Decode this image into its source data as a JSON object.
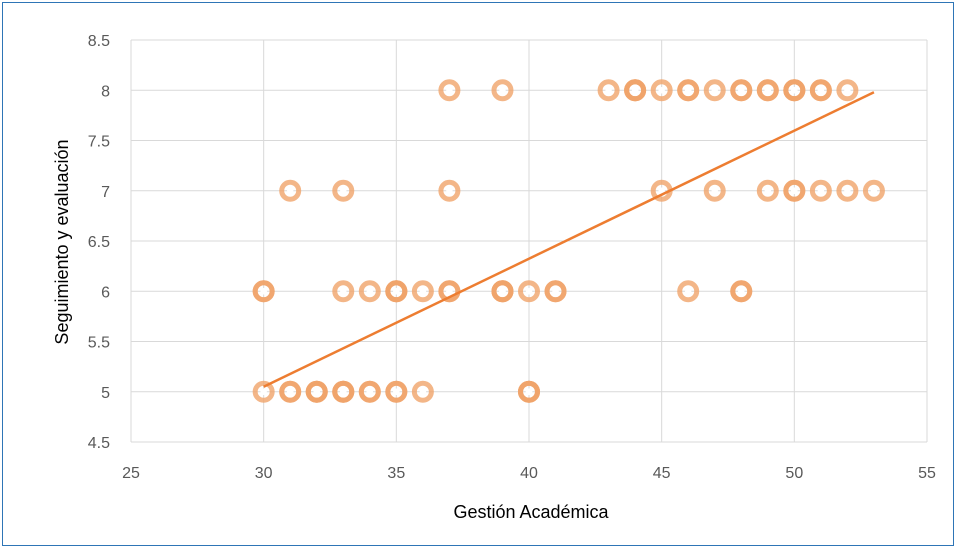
{
  "chart_data": {
    "type": "scatter",
    "title": "",
    "xlabel": "Gestión Académica",
    "ylabel": "Seguimiento y evaluación",
    "xlim": [
      25,
      55
    ],
    "ylim": [
      4.5,
      8.5
    ],
    "x_ticks": [
      25,
      30,
      35,
      40,
      45,
      50,
      55
    ],
    "y_ticks": [
      4.5,
      5,
      5.5,
      6,
      6.5,
      7,
      7.5,
      8,
      8.5
    ],
    "x_tick_labels": [
      "25",
      "30",
      "35",
      "40",
      "45",
      "50",
      "55"
    ],
    "y_tick_labels": [
      "4.5",
      "5",
      "5.5",
      "6",
      "6.5",
      "7",
      "7.5",
      "8",
      "8.5"
    ],
    "grid": "vertical and horizontal",
    "legend": "none",
    "trendline": {
      "type": "linear",
      "x": [
        30,
        53
      ],
      "y": [
        5.05,
        7.98
      ]
    },
    "colors": {
      "marker": "#f0a46a",
      "marker_dense": "#e8823a",
      "trendline": "#ed7d31",
      "border": "#2e75b6"
    },
    "points": [
      {
        "x": 30,
        "y": 5
      },
      {
        "x": 31,
        "y": 5
      },
      {
        "x": 31,
        "y": 5
      },
      {
        "x": 32,
        "y": 5
      },
      {
        "x": 32,
        "y": 5
      },
      {
        "x": 32,
        "y": 5
      },
      {
        "x": 33,
        "y": 5
      },
      {
        "x": 33,
        "y": 5
      },
      {
        "x": 33,
        "y": 5
      },
      {
        "x": 34,
        "y": 5
      },
      {
        "x": 34,
        "y": 5
      },
      {
        "x": 35,
        "y": 5
      },
      {
        "x": 35,
        "y": 5
      },
      {
        "x": 36,
        "y": 5
      },
      {
        "x": 40,
        "y": 5
      },
      {
        "x": 40,
        "y": 5
      },
      {
        "x": 40,
        "y": 5
      },
      {
        "x": 30,
        "y": 6
      },
      {
        "x": 30,
        "y": 6
      },
      {
        "x": 33,
        "y": 6
      },
      {
        "x": 34,
        "y": 6
      },
      {
        "x": 35,
        "y": 6
      },
      {
        "x": 35,
        "y": 6
      },
      {
        "x": 35,
        "y": 6
      },
      {
        "x": 36,
        "y": 6
      },
      {
        "x": 37,
        "y": 6
      },
      {
        "x": 37,
        "y": 6
      },
      {
        "x": 39,
        "y": 6
      },
      {
        "x": 39,
        "y": 6
      },
      {
        "x": 39,
        "y": 6
      },
      {
        "x": 40,
        "y": 6
      },
      {
        "x": 41,
        "y": 6
      },
      {
        "x": 41,
        "y": 6
      },
      {
        "x": 46,
        "y": 6
      },
      {
        "x": 48,
        "y": 6
      },
      {
        "x": 48,
        "y": 6
      },
      {
        "x": 31,
        "y": 7
      },
      {
        "x": 33,
        "y": 7
      },
      {
        "x": 37,
        "y": 7
      },
      {
        "x": 45,
        "y": 7
      },
      {
        "x": 47,
        "y": 7
      },
      {
        "x": 49,
        "y": 7
      },
      {
        "x": 50,
        "y": 7
      },
      {
        "x": 50,
        "y": 7
      },
      {
        "x": 51,
        "y": 7
      },
      {
        "x": 52,
        "y": 7
      },
      {
        "x": 53,
        "y": 7
      },
      {
        "x": 37,
        "y": 8
      },
      {
        "x": 39,
        "y": 8
      },
      {
        "x": 43,
        "y": 8
      },
      {
        "x": 44,
        "y": 8
      },
      {
        "x": 44,
        "y": 8
      },
      {
        "x": 44,
        "y": 8
      },
      {
        "x": 45,
        "y": 8
      },
      {
        "x": 46,
        "y": 8
      },
      {
        "x": 46,
        "y": 8
      },
      {
        "x": 47,
        "y": 8
      },
      {
        "x": 48,
        "y": 8
      },
      {
        "x": 48,
        "y": 8
      },
      {
        "x": 49,
        "y": 8
      },
      {
        "x": 49,
        "y": 8
      },
      {
        "x": 50,
        "y": 8
      },
      {
        "x": 50,
        "y": 8
      },
      {
        "x": 50,
        "y": 8
      },
      {
        "x": 51,
        "y": 8
      },
      {
        "x": 51,
        "y": 8
      },
      {
        "x": 52,
        "y": 8
      }
    ]
  }
}
